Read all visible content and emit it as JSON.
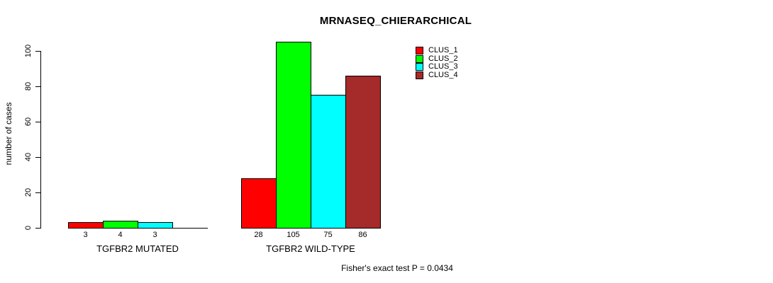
{
  "chart_data": {
    "type": "bar",
    "title": "MRNASEQ_CHIERARCHICAL",
    "ylabel": "number of cases",
    "xlabel": "",
    "ylim": [
      0,
      100
    ],
    "yticks": [
      0,
      20,
      40,
      60,
      80,
      100
    ],
    "grid": false,
    "legend_position": "top-right",
    "categories": [
      "TGFBR2 MUTATED",
      "TGFBR2 WILD-TYPE"
    ],
    "series": [
      {
        "name": "CLUS_1",
        "color": "#FF0000",
        "values": [
          3,
          28
        ]
      },
      {
        "name": "CLUS_2",
        "color": "#00FF00",
        "values": [
          4,
          105
        ]
      },
      {
        "name": "CLUS_3",
        "color": "#00FFFF",
        "values": [
          3,
          75
        ]
      },
      {
        "name": "CLUS_4",
        "color": "#A52A2A",
        "values": [
          0,
          86
        ]
      }
    ],
    "groups": [
      {
        "label": "TGFBR2 MUTATED",
        "values": [
          3,
          4,
          3,
          0
        ],
        "bar_labels": [
          "3",
          "4",
          "3",
          ""
        ]
      },
      {
        "label": "TGFBR2 WILD-TYPE",
        "values": [
          28,
          105,
          75,
          86
        ],
        "bar_labels": [
          "28",
          "105",
          "75",
          "86"
        ]
      }
    ],
    "footnote": "Fisher's exact test P = 0.0434"
  }
}
